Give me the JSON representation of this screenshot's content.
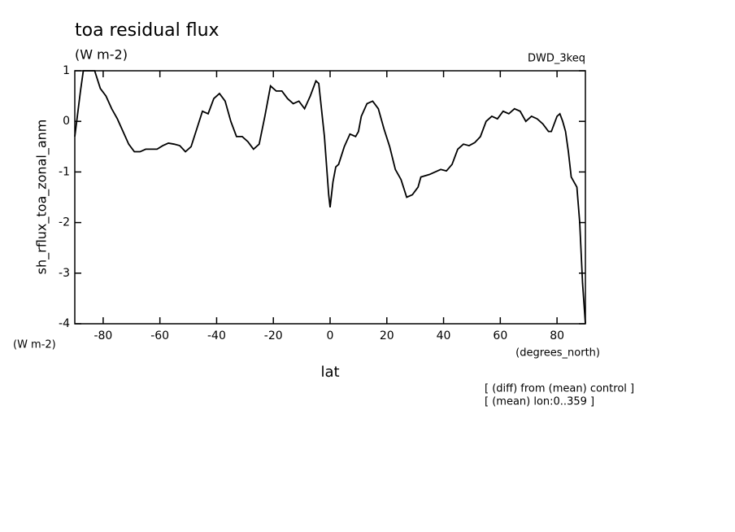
{
  "chart_data": {
    "type": "line",
    "title": "toa residual flux",
    "subtitle": "(W m-2)",
    "dataset_label": "DWD_3keq",
    "y_label": "sh_rflux_toa_zonal_anm",
    "y_units": "(W m-2)",
    "x_label": "lat",
    "x_units": "(degrees_north)",
    "notes": [
      "[ (diff) from (mean) control ]",
      "[ (mean) lon:0..359 ]"
    ],
    "xlim": [
      -90,
      90
    ],
    "xticks": [
      -80,
      -60,
      -40,
      -20,
      0,
      20,
      40,
      60,
      80
    ],
    "ylim": [
      -4,
      1
    ],
    "yticks": [
      -4,
      -3,
      -2,
      -1,
      0,
      1
    ],
    "color": "#000000",
    "x": [
      -90,
      -88,
      -87,
      -85,
      -83,
      -81,
      -79,
      -77,
      -75,
      -73,
      -71,
      -69,
      -67,
      -65,
      -63,
      -61,
      -59,
      -57,
      -55,
      -53,
      -51,
      -49,
      -47,
      -45,
      -43,
      -41,
      -39,
      -37,
      -35,
      -33,
      -31,
      -29,
      -27,
      -25,
      -23,
      -21,
      -19,
      -17,
      -15,
      -13,
      -11,
      -9,
      -7,
      -5,
      -4,
      -2,
      -0.5,
      0,
      1,
      2,
      3,
      5,
      7,
      9,
      10,
      11,
      13,
      15,
      17,
      19,
      21,
      23,
      25,
      27,
      29,
      31,
      32,
      35,
      37,
      39,
      41,
      43,
      45,
      47,
      49,
      51,
      53,
      55,
      57,
      59,
      61,
      63,
      65,
      67,
      69,
      71,
      73,
      75,
      77,
      78,
      80,
      81,
      82,
      83,
      84,
      85,
      86,
      87,
      88,
      89,
      90
    ],
    "values": [
      -0.3,
      0.6,
      1.0,
      1.0,
      1.0,
      0.65,
      0.5,
      0.25,
      0.05,
      -0.2,
      -0.45,
      -0.6,
      -0.6,
      -0.55,
      -0.55,
      -0.55,
      -0.48,
      -0.43,
      -0.45,
      -0.48,
      -0.6,
      -0.5,
      -0.15,
      0.2,
      0.15,
      0.45,
      0.55,
      0.4,
      0.0,
      -0.3,
      -0.3,
      -0.4,
      -0.55,
      -0.45,
      0.1,
      0.7,
      0.6,
      0.6,
      0.45,
      0.35,
      0.4,
      0.25,
      0.5,
      0.8,
      0.75,
      -0.3,
      -1.45,
      -1.7,
      -1.2,
      -0.9,
      -0.85,
      -0.5,
      -0.25,
      -0.3,
      -0.2,
      0.1,
      0.35,
      0.4,
      0.25,
      -0.15,
      -0.5,
      -0.95,
      -1.15,
      -1.5,
      -1.45,
      -1.3,
      -1.1,
      -1.05,
      -1.0,
      -0.95,
      -0.98,
      -0.85,
      -0.55,
      -0.45,
      -0.48,
      -0.42,
      -0.3,
      0.0,
      0.1,
      0.05,
      0.2,
      0.15,
      0.25,
      0.2,
      0.0,
      0.1,
      0.05,
      -0.05,
      -0.2,
      -0.2,
      0.1,
      0.15,
      0.0,
      -0.2,
      -0.6,
      -1.1,
      -1.2,
      -1.3,
      -2.0,
      -3.2,
      -4.0
    ]
  }
}
